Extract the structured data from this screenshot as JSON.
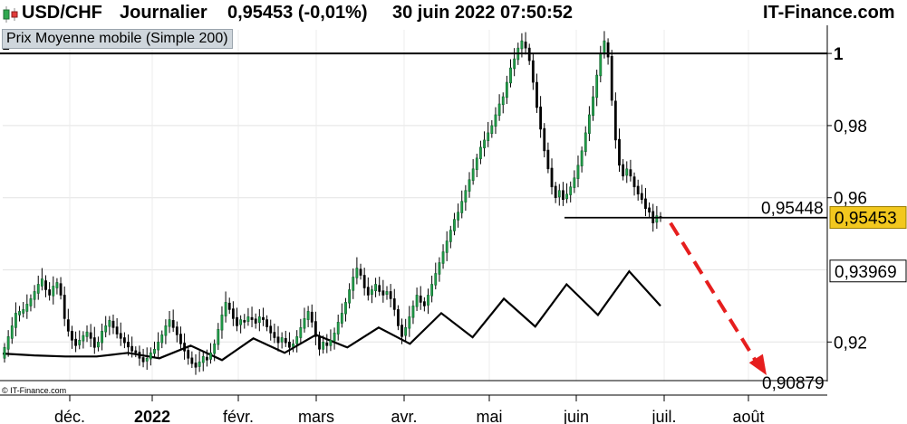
{
  "header": {
    "symbol": "USD/CHF",
    "period": "Journalier",
    "quote": "0,95453 (-0,01%)",
    "datetime": "30 juin 2022 07:50:52",
    "brand": "IT-Finance.com"
  },
  "legend": {
    "label": "Prix Moyenne mobile (Simple 200)"
  },
  "copyright": "© IT-Finance.com",
  "chart_data": {
    "type": "candlestick",
    "y_ticks": [
      "1",
      "0,98",
      "0,96",
      "0,92"
    ],
    "ylim": [
      0.9093,
      1.0073
    ],
    "x_ticks": [
      "déc.",
      "2022",
      "févr.",
      "mars",
      "avr.",
      "mai",
      "juin",
      "juil.",
      "août"
    ],
    "last_price": {
      "label": "0,95453",
      "value": 0.95453,
      "color": "#f2c81e"
    },
    "annotations": {
      "resistance": {
        "label": "1",
        "value": 1.0
      },
      "support": {
        "label": "0,95448",
        "value": 0.95448
      },
      "ma_value": {
        "label": "0,93969",
        "value": 0.93969
      },
      "target": {
        "label": "0,90879",
        "value": 0.90879
      }
    },
    "ma_series": {
      "name": "Moyenne mobile (Simple 200)",
      "points": [
        [
          0.9168,
          0.9163
        ],
        [
          0.916,
          0.916
        ],
        [
          0.917,
          0.9155
        ],
        [
          0.919,
          0.915
        ],
        [
          0.921,
          0.917
        ],
        [
          0.922,
          0.9185
        ],
        [
          0.924,
          0.9195
        ],
        [
          0.928,
          0.9213
        ],
        [
          0.932,
          0.9243
        ],
        [
          0.936,
          0.9275
        ],
        [
          0.9396,
          0.93
        ]
      ]
    },
    "bearish_arrow": {
      "from": 0.953,
      "to": 0.9108,
      "color": "#e61e1e"
    },
    "candles": [
      [
        0.9155,
        0.9185
      ],
      [
        0.918,
        0.9215
      ],
      [
        0.921,
        0.9245
      ],
      [
        0.924,
        0.928
      ],
      [
        0.9275,
        0.9285
      ],
      [
        0.928,
        0.929
      ],
      [
        0.9285,
        0.9305
      ],
      [
        0.93,
        0.932
      ],
      [
        0.9318,
        0.934
      ],
      [
        0.9335,
        0.936
      ],
      [
        0.9355,
        0.9375
      ],
      [
        0.937,
        0.9345
      ],
      [
        0.9345,
        0.933
      ],
      [
        0.9328,
        0.9355
      ],
      [
        0.935,
        0.9365
      ],
      [
        0.9362,
        0.933
      ],
      [
        0.933,
        0.9265
      ],
      [
        0.9262,
        0.923
      ],
      [
        0.923,
        0.9205
      ],
      [
        0.9208,
        0.919
      ],
      [
        0.9192,
        0.9205
      ],
      [
        0.9203,
        0.9218
      ],
      [
        0.9215,
        0.9228
      ],
      [
        0.9226,
        0.921
      ],
      [
        0.9212,
        0.9185
      ],
      [
        0.9186,
        0.92
      ],
      [
        0.9198,
        0.923
      ],
      [
        0.9228,
        0.9245
      ],
      [
        0.9243,
        0.926
      ],
      [
        0.9258,
        0.924
      ],
      [
        0.9242,
        0.9222
      ],
      [
        0.9224,
        0.921
      ],
      [
        0.9212,
        0.9198
      ],
      [
        0.92,
        0.9186
      ],
      [
        0.9188,
        0.9175
      ],
      [
        0.9176,
        0.917
      ],
      [
        0.9172,
        0.9155
      ],
      [
        0.9157,
        0.9145
      ],
      [
        0.9147,
        0.9155
      ],
      [
        0.9153,
        0.917
      ],
      [
        0.9168,
        0.918
      ],
      [
        0.9178,
        0.92
      ],
      [
        0.9198,
        0.922
      ],
      [
        0.9218,
        0.9245
      ],
      [
        0.9243,
        0.9262
      ],
      [
        0.926,
        0.924
      ],
      [
        0.9242,
        0.922
      ],
      [
        0.9222,
        0.9195
      ],
      [
        0.9197,
        0.9175
      ],
      [
        0.9177,
        0.9155
      ],
      [
        0.9156,
        0.914
      ],
      [
        0.9142,
        0.913
      ],
      [
        0.9132,
        0.9145
      ],
      [
        0.9143,
        0.916
      ],
      [
        0.9158,
        0.915
      ],
      [
        0.9152,
        0.917
      ],
      [
        0.9168,
        0.9195
      ],
      [
        0.9193,
        0.9235
      ],
      [
        0.9233,
        0.9275
      ],
      [
        0.9272,
        0.931
      ],
      [
        0.9308,
        0.929
      ],
      [
        0.9292,
        0.9265
      ],
      [
        0.9268,
        0.9245
      ],
      [
        0.9248,
        0.9262
      ],
      [
        0.926,
        0.9255
      ],
      [
        0.9257,
        0.927
      ],
      [
        0.9268,
        0.9262
      ],
      [
        0.9264,
        0.9252
      ],
      [
        0.9254,
        0.927
      ],
      [
        0.9268,
        0.9262
      ],
      [
        0.9262,
        0.9242
      ],
      [
        0.9244,
        0.9225
      ],
      [
        0.9227,
        0.9212
      ],
      [
        0.9214,
        0.9198
      ],
      [
        0.92,
        0.9212
      ],
      [
        0.921,
        0.9198
      ],
      [
        0.92,
        0.9185
      ],
      [
        0.9187,
        0.9195
      ],
      [
        0.9195,
        0.9215
      ],
      [
        0.9212,
        0.924
      ],
      [
        0.9238,
        0.9265
      ],
      [
        0.9262,
        0.9285
      ],
      [
        0.9283,
        0.9255
      ],
      [
        0.9257,
        0.9215
      ],
      [
        0.9217,
        0.918
      ],
      [
        0.918,
        0.92
      ],
      [
        0.9198,
        0.919
      ],
      [
        0.919,
        0.9205
      ],
      [
        0.9203,
        0.9225
      ],
      [
        0.9222,
        0.9255
      ],
      [
        0.9252,
        0.928
      ],
      [
        0.9278,
        0.931
      ],
      [
        0.9308,
        0.9345
      ],
      [
        0.9343,
        0.938
      ],
      [
        0.9378,
        0.9405
      ],
      [
        0.9402,
        0.9385
      ],
      [
        0.9385,
        0.935
      ],
      [
        0.9352,
        0.933
      ],
      [
        0.9332,
        0.9345
      ],
      [
        0.9342,
        0.936
      ],
      [
        0.9357,
        0.934
      ],
      [
        0.9342,
        0.933
      ],
      [
        0.9332,
        0.934
      ],
      [
        0.934,
        0.932
      ],
      [
        0.932,
        0.929
      ],
      [
        0.929,
        0.9245
      ],
      [
        0.9247,
        0.9215
      ],
      [
        0.9218,
        0.924
      ],
      [
        0.9238,
        0.927
      ],
      [
        0.9268,
        0.93
      ],
      [
        0.9298,
        0.933
      ],
      [
        0.9328,
        0.931
      ],
      [
        0.9312,
        0.93
      ],
      [
        0.9302,
        0.933
      ],
      [
        0.9328,
        0.936
      ],
      [
        0.9358,
        0.939
      ],
      [
        0.9388,
        0.942
      ],
      [
        0.9418,
        0.945
      ],
      [
        0.9448,
        0.948
      ],
      [
        0.9478,
        0.951
      ],
      [
        0.9508,
        0.954
      ],
      [
        0.9538,
        0.956
      ],
      [
        0.9558,
        0.959
      ],
      [
        0.9588,
        0.962
      ],
      [
        0.9618,
        0.965
      ],
      [
        0.9648,
        0.968
      ],
      [
        0.9678,
        0.971
      ],
      [
        0.9708,
        0.974
      ],
      [
        0.9738,
        0.976
      ],
      [
        0.9758,
        0.978
      ],
      [
        0.9778,
        0.98
      ],
      [
        0.9798,
        0.983
      ],
      [
        0.9828,
        0.986
      ],
      [
        0.9858,
        0.988
      ],
      [
        0.9878,
        0.992
      ],
      [
        0.9918,
        0.996
      ],
      [
        0.9958,
        0.9985
      ],
      [
        0.9983,
        1.0015
      ],
      [
        1.0013,
        1.0035
      ],
      [
        1.0032,
        1.0015
      ],
      [
        1.0015,
        0.998
      ],
      [
        0.998,
        0.992
      ],
      [
        0.992,
        0.985
      ],
      [
        0.9852,
        0.979
      ],
      [
        0.9792,
        0.973
      ],
      [
        0.9732,
        0.968
      ],
      [
        0.9682,
        0.963
      ],
      [
        0.9632,
        0.96
      ],
      [
        0.9602,
        0.962
      ],
      [
        0.962,
        0.9595
      ],
      [
        0.9597,
        0.961
      ],
      [
        0.9608,
        0.963
      ],
      [
        0.9628,
        0.9655
      ],
      [
        0.9653,
        0.969
      ],
      [
        0.9688,
        0.973
      ],
      [
        0.9728,
        0.978
      ],
      [
        0.9778,
        0.983
      ],
      [
        0.9828,
        0.988
      ],
      [
        0.9878,
        0.994
      ],
      [
        0.9938,
        1.0
      ],
      [
        0.9998,
        1.0035
      ],
      [
        1.003,
        0.999
      ],
      [
        0.9992,
        0.987
      ],
      [
        0.9868,
        0.976
      ],
      [
        0.9762,
        0.969
      ],
      [
        0.9692,
        0.966
      ],
      [
        0.9662,
        0.968
      ],
      [
        0.9678,
        0.966
      ],
      [
        0.9658,
        0.963
      ],
      [
        0.9632,
        0.961
      ],
      [
        0.9612,
        0.9595
      ],
      [
        0.9597,
        0.957
      ],
      [
        0.9572,
        0.956
      ],
      [
        0.9562,
        0.953
      ],
      [
        0.9532,
        0.955
      ],
      [
        0.9548,
        0.9545
      ]
    ]
  }
}
